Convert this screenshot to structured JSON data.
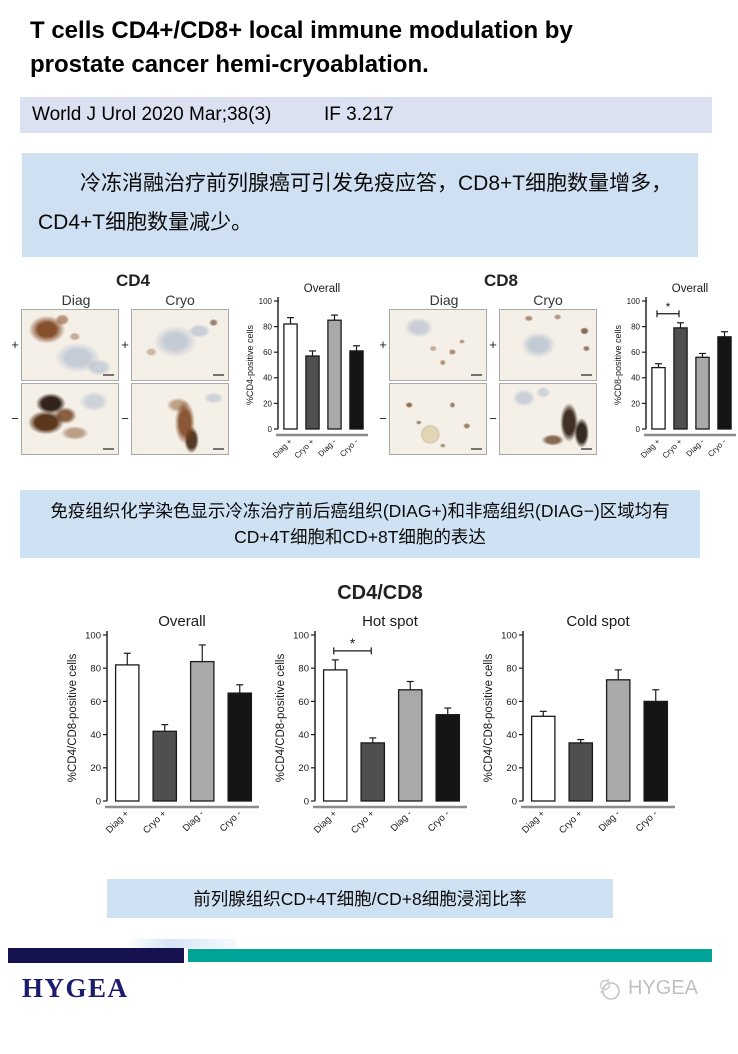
{
  "header": {
    "title": "T cells CD4+/CD8+ local immune modulation by prostate cancer hemi-cryoablation."
  },
  "citation": {
    "journal": "World J Urol 2020 Mar;38(3)",
    "impact_factor": "IF 3.217"
  },
  "summary": "冷冻消融治疗前列腺癌可引发免疫应答，CD8+T细胞数量增多，CD4+T细胞数量减少。",
  "figures": {
    "cd4": {
      "title": "CD4",
      "col_labels": [
        "Diag",
        "Cryo"
      ],
      "row_labels": [
        "+",
        "−"
      ]
    },
    "cd8": {
      "title": "CD8",
      "col_labels": [
        "Diag",
        "Cryo"
      ],
      "row_labels": [
        "+",
        "−"
      ]
    }
  },
  "caption_ihc": "免疫组织化学染色显示冷冻治疗前后癌组织(DIAG+)和非癌组织(DIAG−)区域均有CD+4T细胞和CD+8T细胞的表达",
  "combined_figure_title": "CD4/CD8",
  "caption_ratio": "前列腺组织CD+4T细胞/CD+8细胞浸润比率",
  "footer": {
    "brand": "HYGEA",
    "watermark": "HYGEA"
  },
  "colors": {
    "citation_bg": "#dbe1f0",
    "summary_bg": "#cfe0f2",
    "caption_bg": "#cfe2f4",
    "footer_navy": "#161250",
    "footer_teal": "#00a398",
    "bar_white": "#ffffff",
    "bar_dark_gray": "#4f4f4f",
    "bar_light_gray": "#a9a9a9",
    "bar_black": "#141414"
  },
  "chart_data": [
    {
      "id": "cd4-overall",
      "type": "bar",
      "title": "Overall",
      "ylabel": "%CD4-positive cells",
      "ylim": [
        0,
        100
      ],
      "yticks": [
        0,
        20,
        40,
        60,
        80,
        100
      ],
      "categories": [
        "Diag +",
        "Cryo +",
        "Diag -",
        "Cryo -"
      ],
      "values": [
        82,
        57,
        85,
        61
      ],
      "errors": [
        5,
        4,
        4,
        4
      ],
      "bar_colors": [
        "#ffffff",
        "#4f4f4f",
        "#a9a9a9",
        "#141414"
      ],
      "significance": null
    },
    {
      "id": "cd8-overall",
      "type": "bar",
      "title": "Overall",
      "ylabel": "%CD8-positive cells",
      "ylim": [
        0,
        100
      ],
      "yticks": [
        0,
        20,
        40,
        60,
        80,
        100
      ],
      "categories": [
        "Diag +",
        "Cryo +",
        "Diag -",
        "Cryo -"
      ],
      "values": [
        48,
        79,
        56,
        72
      ],
      "errors": [
        3,
        4,
        3,
        4
      ],
      "bar_colors": [
        "#ffffff",
        "#4f4f4f",
        "#a9a9a9",
        "#141414"
      ],
      "significance": {
        "between": [
          0,
          1
        ],
        "label": "*"
      }
    },
    {
      "id": "ratio-overall",
      "type": "bar",
      "title": "Overall",
      "ylabel": "%CD4/CD8-positive cells",
      "ylim": [
        0,
        100
      ],
      "yticks": [
        0,
        20,
        40,
        60,
        80,
        100
      ],
      "categories": [
        "Diag +",
        "Cryo +",
        "Diag -",
        "Cryo -"
      ],
      "values": [
        82,
        42,
        84,
        65
      ],
      "errors": [
        7,
        4,
        10,
        5
      ],
      "bar_colors": [
        "#ffffff",
        "#4f4f4f",
        "#a9a9a9",
        "#141414"
      ],
      "significance": null
    },
    {
      "id": "ratio-hotspot",
      "type": "bar",
      "title": "Hot spot",
      "ylabel": "%CD4/CD8-positive cells",
      "ylim": [
        0,
        100
      ],
      "yticks": [
        0,
        20,
        40,
        60,
        80,
        100
      ],
      "categories": [
        "Diag +",
        "Cryo +",
        "Diag -",
        "Cryo -"
      ],
      "values": [
        79,
        35,
        67,
        52
      ],
      "errors": [
        6,
        3,
        5,
        4
      ],
      "bar_colors": [
        "#ffffff",
        "#4f4f4f",
        "#a9a9a9",
        "#141414"
      ],
      "significance": {
        "between": [
          0,
          1
        ],
        "label": "*"
      }
    },
    {
      "id": "ratio-coldspot",
      "type": "bar",
      "title": "Cold spot",
      "ylabel": "%CD4/CD8-positive cells",
      "ylim": [
        0,
        100
      ],
      "yticks": [
        0,
        20,
        40,
        60,
        80,
        100
      ],
      "categories": [
        "Diag +",
        "Cryo +",
        "Diag -",
        "Cryo -"
      ],
      "values": [
        51,
        35,
        73,
        60
      ],
      "errors": [
        3,
        2,
        6,
        7
      ],
      "bar_colors": [
        "#ffffff",
        "#4f4f4f",
        "#a9a9a9",
        "#141414"
      ],
      "significance": null
    }
  ]
}
